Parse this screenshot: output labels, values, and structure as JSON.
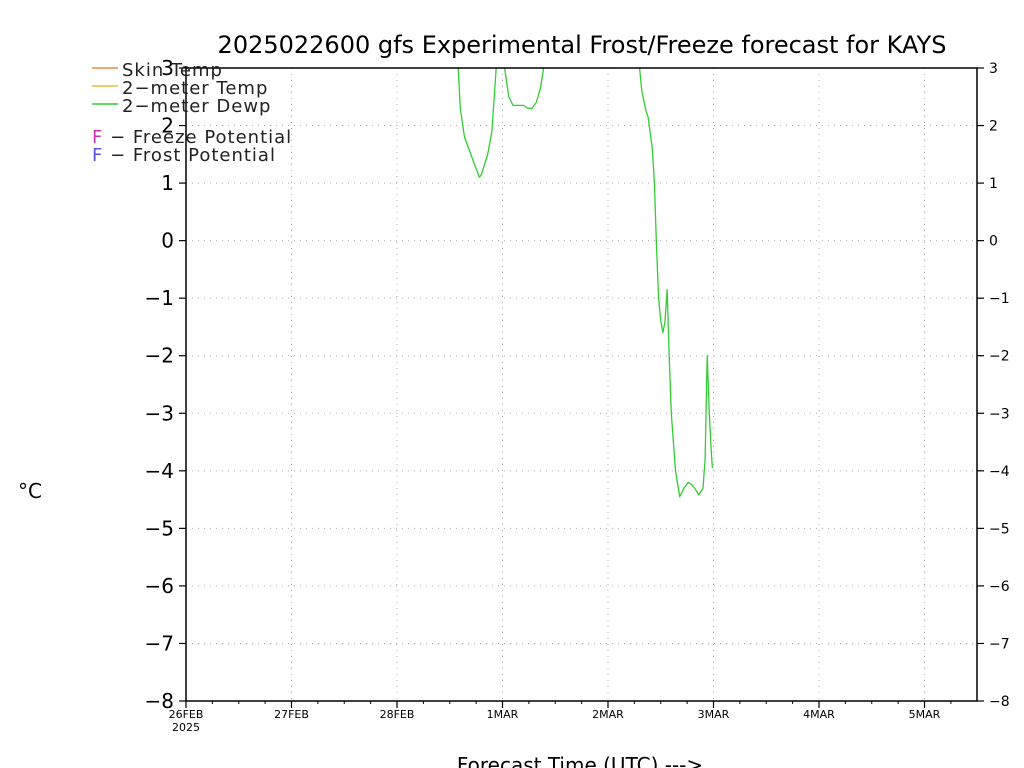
{
  "chart_data": {
    "type": "line",
    "title": "2025022600 gfs Experimental Frost/Freeze forecast for KAYS",
    "xlabel": "Forecast Time (UTC) --->",
    "ylabel": "°C",
    "ylim": [
      -8,
      3
    ],
    "xlim": [
      0,
      7.5
    ],
    "grid": true,
    "legend_position": "top-left",
    "y_ticks": [
      "−8",
      "−7",
      "−6",
      "−5",
      "−4",
      "−3",
      "−2",
      "−1",
      "0",
      "1",
      "2",
      "3"
    ],
    "x_ticks": [
      {
        "label": "26FEB",
        "sub": "2025"
      },
      {
        "label": "27FEB",
        "sub": ""
      },
      {
        "label": "28FEB",
        "sub": ""
      },
      {
        "label": "1MAR",
        "sub": ""
      },
      {
        "label": "2MAR",
        "sub": ""
      },
      {
        "label": "3MAR",
        "sub": ""
      },
      {
        "label": "4MAR",
        "sub": ""
      },
      {
        "label": "5MAR",
        "sub": ""
      }
    ],
    "legend": [
      {
        "name": "Skin Temp",
        "color": "#f08a40"
      },
      {
        "name": "2−meter Temp",
        "color": "#e0c040"
      },
      {
        "name": "2−meter Dewp",
        "color": "#33cc33"
      }
    ],
    "potential_legend": [
      {
        "letter": "F",
        "text": " − Freeze Potential",
        "color": "#cc33aa"
      },
      {
        "letter": "F",
        "text": " − Frost Potential",
        "color": "#5555dd"
      }
    ],
    "series": [
      {
        "name": "2−meter Dewp",
        "color": "#33cc33",
        "segments": [
          [
            [
              2.58,
              3.0
            ],
            [
              2.6,
              2.3
            ],
            [
              2.64,
              1.8
            ],
            [
              2.72,
              1.4
            ],
            [
              2.78,
              1.1
            ],
            [
              2.8,
              1.15
            ],
            [
              2.86,
              1.5
            ],
            [
              2.9,
              1.9
            ],
            [
              2.94,
              3.0
            ]
          ],
          [
            [
              3.02,
              3.0
            ],
            [
              3.06,
              2.5
            ],
            [
              3.1,
              2.35
            ],
            [
              3.2,
              2.35
            ],
            [
              3.24,
              2.3
            ],
            [
              3.28,
              2.3
            ],
            [
              3.32,
              2.4
            ],
            [
              3.36,
              2.65
            ],
            [
              3.39,
              3.0
            ]
          ],
          [
            [
              4.3,
              3.0
            ],
            [
              4.32,
              2.6
            ],
            [
              4.36,
              2.25
            ],
            [
              4.38,
              2.15
            ],
            [
              4.42,
              1.6
            ],
            [
              4.44,
              1.0
            ],
            [
              4.46,
              -0.1
            ],
            [
              4.48,
              -1.0
            ],
            [
              4.5,
              -1.4
            ],
            [
              4.52,
              -1.6
            ],
            [
              4.54,
              -1.4
            ],
            [
              4.56,
              -0.85
            ],
            [
              4.58,
              -2.0
            ],
            [
              4.6,
              -3.0
            ],
            [
              4.64,
              -4.0
            ],
            [
              4.68,
              -4.45
            ],
            [
              4.72,
              -4.3
            ],
            [
              4.76,
              -4.2
            ],
            [
              4.8,
              -4.25
            ],
            [
              4.84,
              -4.35
            ],
            [
              4.86,
              -4.42
            ],
            [
              4.9,
              -4.3
            ],
            [
              4.92,
              -3.8
            ],
            [
              4.94,
              -2.0
            ],
            [
              4.96,
              -3.0
            ],
            [
              4.98,
              -3.7
            ],
            [
              4.99,
              -3.95
            ]
          ]
        ]
      }
    ]
  }
}
